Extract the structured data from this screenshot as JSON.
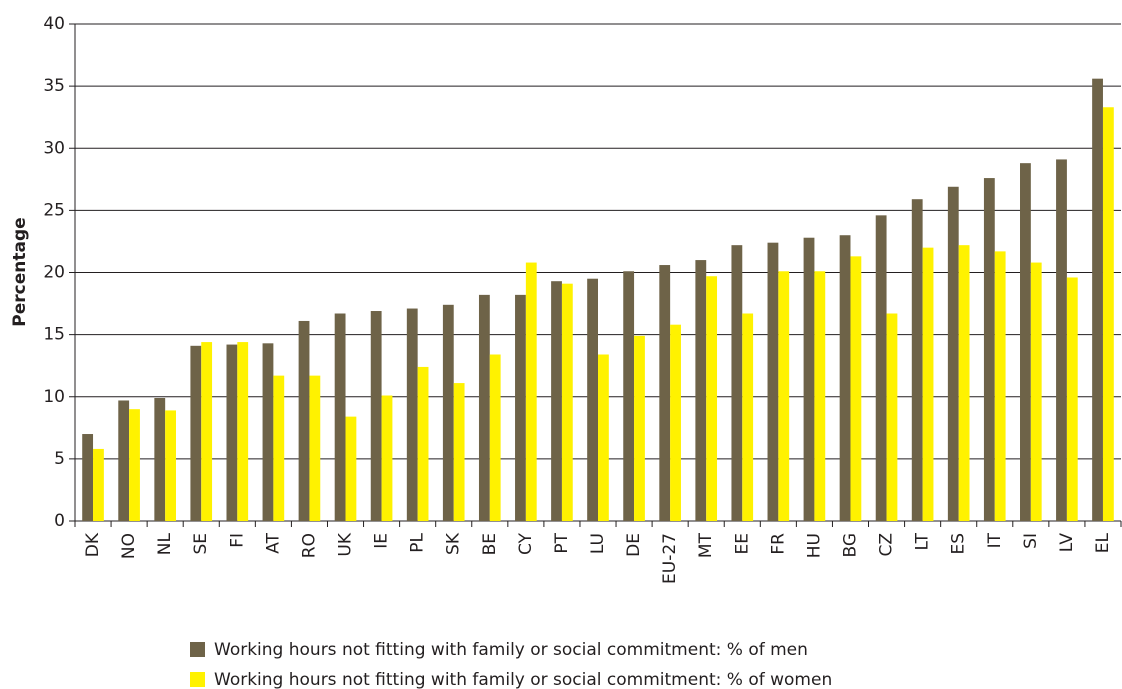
{
  "chart_data": {
    "type": "bar",
    "y_label": "Percentage",
    "categories": [
      "DK",
      "NO",
      "NL",
      "SE",
      "FI",
      "AT",
      "RO",
      "UK",
      "IE",
      "PL",
      "SK",
      "BE",
      "CY",
      "PT",
      "LU",
      "DE",
      "EU-27",
      "MT",
      "EE",
      "FR",
      "HU",
      "BG",
      "CZ",
      "LT",
      "ES",
      "IT",
      "SI",
      "LV",
      "EL"
    ],
    "series": [
      {
        "name": "Working hours not fitting with family or social commitment: % of men",
        "color": "#6e6348",
        "values": [
          7.0,
          9.7,
          9.9,
          14.1,
          14.2,
          14.3,
          16.1,
          16.7,
          16.9,
          17.1,
          17.4,
          18.2,
          18.2,
          19.3,
          19.5,
          20.1,
          20.6,
          21.0,
          22.2,
          22.4,
          22.8,
          23.0,
          24.6,
          25.9,
          26.9,
          27.6,
          28.8,
          29.1,
          35.6
        ]
      },
      {
        "name": "Working hours not fitting with family or social commitment: % of women",
        "color": "#fff200",
        "values": [
          5.8,
          9.0,
          8.9,
          14.4,
          14.4,
          11.7,
          11.7,
          8.4,
          10.1,
          12.4,
          11.1,
          13.4,
          20.8,
          19.1,
          13.4,
          14.9,
          15.8,
          19.7,
          16.7,
          20.1,
          20.1,
          21.3,
          16.7,
          22.0,
          22.2,
          21.7,
          20.8,
          19.6,
          33.3
        ]
      }
    ],
    "ylim": [
      0,
      40
    ],
    "yticks": [
      0,
      5,
      10,
      15,
      20,
      25,
      30,
      35,
      40
    ],
    "grid": true,
    "legend": "bottom"
  }
}
